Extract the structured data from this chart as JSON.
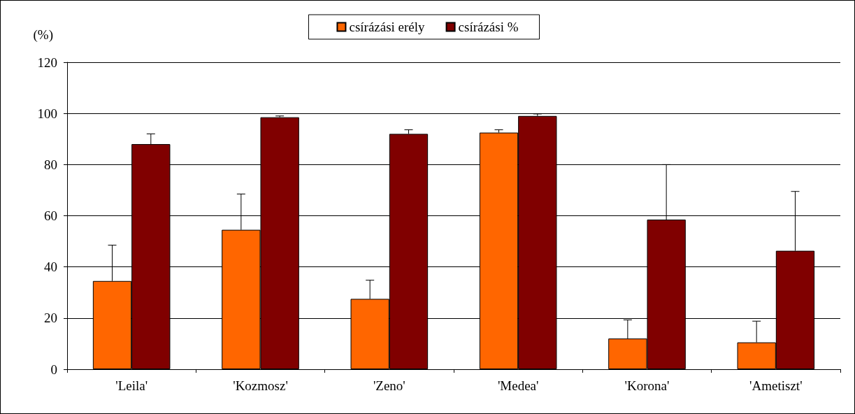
{
  "chart_data": {
    "type": "bar",
    "ylabel": "(%)",
    "categories": [
      "'Leila'",
      "'Kozmosz'",
      "'Zeno'",
      "'Medea'",
      "'Korona'",
      "'Ametiszt'"
    ],
    "series": [
      {
        "name": "csírázási erély",
        "color": "#ff6600",
        "values": [
          34.5,
          54.5,
          27.5,
          92.5,
          12,
          10.5
        ],
        "errors": [
          [
            34.5,
            48.5
          ],
          [
            54.5,
            68.5
          ],
          [
            27.5,
            34.8
          ],
          [
            92.5,
            93.6
          ],
          [
            12,
            19.3
          ],
          [
            10.5,
            18.8
          ]
        ]
      },
      {
        "name": "csírázási %",
        "color": "#800000",
        "values": [
          88,
          98.5,
          92,
          99,
          58.5,
          46.3
        ],
        "errors": [
          [
            88,
            92
          ],
          [
            98.5,
            99
          ],
          [
            92,
            93.6
          ],
          [
            99,
            99.8
          ],
          [
            58.5,
            80
          ],
          [
            46.3,
            69.5
          ]
        ]
      }
    ],
    "ylim": [
      0,
      120
    ],
    "yticks": [
      0,
      20,
      40,
      60,
      80,
      100,
      120
    ],
    "grid": "y",
    "legend": "top"
  }
}
